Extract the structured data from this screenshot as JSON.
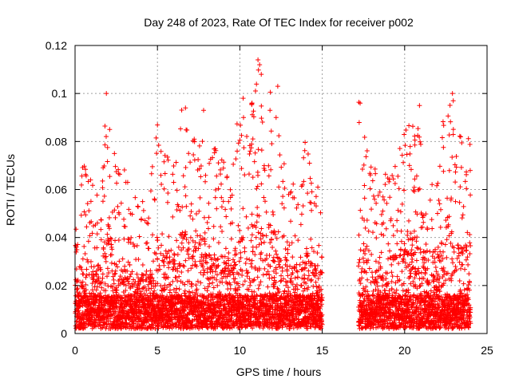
{
  "chart_data": {
    "type": "scatter",
    "title": "Day 248 of 2023, Rate Of TEC Index for receiver p002",
    "xlabel": "GPS time / hours",
    "ylabel": "ROTI / TECUs",
    "xlim": [
      0,
      25
    ],
    "ylim": [
      0,
      0.12
    ],
    "x_ticks": [
      "0",
      "5",
      "10",
      "15",
      "20",
      "25"
    ],
    "y_ticks": [
      "0",
      "0.02",
      "0.04",
      "0.06",
      "0.08",
      "0.1",
      "0.12"
    ],
    "grid": true,
    "marker": "plus",
    "color": "#ff0000",
    "data_gap": [
      15.0,
      17.2
    ],
    "envelope_x": [
      0,
      0.5,
      1,
      1.5,
      2,
      2.5,
      3,
      3.5,
      4,
      4.5,
      5,
      5.5,
      6,
      6.5,
      7,
      7.5,
      8,
      8.5,
      9,
      9.5,
      10,
      10.5,
      11,
      11.5,
      12,
      12.5,
      13,
      13.5,
      14,
      14.5,
      15,
      17.2,
      17.5,
      18,
      18.5,
      19,
      19.5,
      20,
      20.5,
      21,
      21.5,
      22,
      22.5,
      23,
      23.5,
      24
    ],
    "envelope_y": [
      0.046,
      0.068,
      0.062,
      0.055,
      0.1,
      0.065,
      0.068,
      0.055,
      0.05,
      0.055,
      0.083,
      0.07,
      0.075,
      0.095,
      0.078,
      0.09,
      0.07,
      0.075,
      0.072,
      0.06,
      0.098,
      0.075,
      0.114,
      0.09,
      0.103,
      0.07,
      0.065,
      0.06,
      0.078,
      0.06,
      0.055,
      0.096,
      0.082,
      0.07,
      0.058,
      0.066,
      0.07,
      0.08,
      0.095,
      0.08,
      0.07,
      0.06,
      0.1,
      0.088,
      0.082,
      0.08
    ],
    "highlight_points": [
      {
        "x": 1.9,
        "y": 0.1
      },
      {
        "x": 6.7,
        "y": 0.094
      },
      {
        "x": 7.8,
        "y": 0.093
      },
      {
        "x": 10.2,
        "y": 0.098
      },
      {
        "x": 11.1,
        "y": 0.114
      },
      {
        "x": 11.2,
        "y": 0.112
      },
      {
        "x": 11.3,
        "y": 0.108
      },
      {
        "x": 12.3,
        "y": 0.103
      },
      {
        "x": 12.2,
        "y": 0.09
      },
      {
        "x": 17.3,
        "y": 0.096
      },
      {
        "x": 20.9,
        "y": 0.095
      },
      {
        "x": 22.9,
        "y": 0.1
      },
      {
        "x": 22.95,
        "y": 0.097
      },
      {
        "x": 23.4,
        "y": 0.082
      }
    ]
  }
}
